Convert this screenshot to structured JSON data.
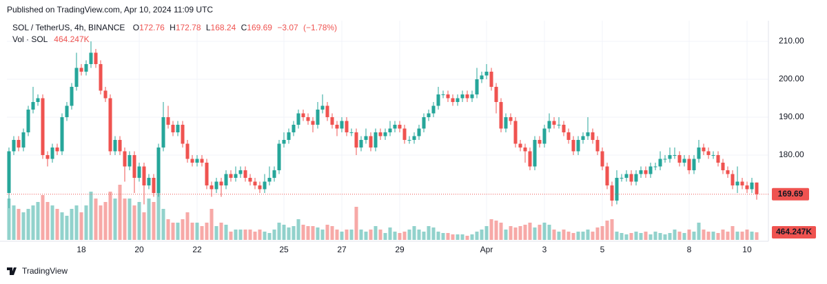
{
  "header": "Published on TradingView.com, Apr 10, 2024 11:09 UTC",
  "footer": "TradingView",
  "chart_data": {
    "type": "candlestick",
    "symbol": "SOL / TetherUS, 4h, BINANCE",
    "ohlc_labels": [
      "O",
      "H",
      "L",
      "C"
    ],
    "change": {
      "value": -3.07,
      "label": "−3.07"
    },
    "change_pct": {
      "value": -1.78,
      "label": "(−1.78%)"
    },
    "volume_label": "Vol · SOL",
    "volume_last_label": "464.247K",
    "up_color": "#26a69a",
    "down_color": "#ef5350",
    "grid": true,
    "ylim": [
      157.27,
      215.45
    ],
    "yticks": [
      {
        "value": 180,
        "label": "180.00"
      },
      {
        "value": 190,
        "label": "190.00"
      },
      {
        "value": 200,
        "label": "200.00"
      },
      {
        "value": 210,
        "label": "210.00"
      }
    ],
    "xlim": [
      -0.43,
      157.43
    ],
    "xticks": [
      {
        "value": 15,
        "label": "18"
      },
      {
        "value": 27,
        "label": "20"
      },
      {
        "value": 39,
        "label": "22"
      },
      {
        "value": 57,
        "label": "25"
      },
      {
        "value": 69,
        "label": "27"
      },
      {
        "value": 81,
        "label": "29"
      },
      {
        "value": 99,
        "label": "Apr"
      },
      {
        "value": 111,
        "label": "3"
      },
      {
        "value": 123,
        "label": "5"
      },
      {
        "value": 141,
        "label": "8"
      },
      {
        "value": 153,
        "label": "10"
      }
    ],
    "open": [
      170,
      181,
      184,
      182,
      186,
      192,
      194,
      195,
      180,
      179,
      182,
      181,
      190,
      193,
      198,
      203,
      202,
      204,
      207,
      204,
      197,
      195,
      181,
      184,
      181,
      177,
      180,
      174,
      177,
      172,
      174,
      170,
      182,
      190,
      188,
      186,
      188,
      183,
      179,
      178,
      179,
      178,
      172,
      171,
      173,
      172,
      175,
      174,
      175,
      176,
      174,
      173,
      172,
      171,
      173,
      174,
      176,
      183,
      184,
      186,
      188,
      191,
      190,
      189,
      188,
      192,
      193,
      190,
      188,
      187,
      189,
      186,
      186,
      182,
      184,
      185,
      182,
      186,
      185,
      186,
      187,
      188,
      187,
      184,
      184,
      185,
      187,
      190,
      191,
      193,
      196,
      196,
      195,
      194,
      195,
      196,
      195,
      196,
      200,
      201,
      202,
      198,
      194,
      187,
      190,
      189,
      183,
      182,
      181,
      177,
      184,
      183,
      187,
      189,
      188,
      188,
      186,
      184,
      181,
      184,
      185,
      186,
      184,
      181,
      177,
      172,
      168,
      174,
      174,
      175,
      173,
      175,
      176,
      175,
      177,
      177,
      179,
      179,
      180,
      180,
      178,
      179,
      176,
      179,
      182,
      181,
      180,
      180,
      178,
      176,
      175,
      172,
      173,
      172,
      171,
      172.76
    ],
    "high": [
      182,
      185,
      185,
      187,
      193,
      198,
      196,
      196,
      181,
      183,
      183,
      191,
      194,
      199,
      207,
      204,
      205,
      210,
      208,
      205,
      198,
      196,
      185,
      185,
      182,
      181,
      181,
      178,
      178,
      175,
      175,
      183,
      194,
      193,
      189,
      189,
      189,
      184,
      180,
      180,
      180,
      179,
      173,
      174,
      174,
      176,
      176,
      177,
      177,
      177,
      175,
      174,
      173,
      175,
      177,
      177,
      184,
      186,
      187,
      189,
      192,
      192,
      191,
      190,
      194,
      196,
      194,
      191,
      189,
      190,
      190,
      187,
      187,
      185,
      187,
      186,
      187,
      187,
      187,
      189,
      189,
      189,
      188,
      185,
      186,
      188,
      191,
      192,
      194,
      198,
      197,
      197,
      196,
      196,
      197,
      197,
      197,
      203,
      202,
      204,
      203,
      199,
      195,
      191,
      191,
      190,
      184,
      183,
      182,
      185,
      185,
      188,
      191,
      190,
      190,
      189,
      187,
      185,
      185,
      186,
      190,
      187,
      185,
      182,
      178,
      173,
      176,
      175,
      176,
      176,
      176,
      177,
      177,
      178,
      178,
      181,
      180,
      182,
      182,
      181,
      180,
      180,
      180,
      184,
      183,
      182,
      181,
      181,
      179,
      177,
      176,
      177,
      174,
      173,
      174,
      172.78
    ],
    "low": [
      166,
      180,
      181,
      181,
      185,
      191,
      193,
      179,
      177,
      178,
      180,
      180,
      189,
      192,
      197,
      201,
      201,
      203,
      203,
      196,
      194,
      180,
      180,
      180,
      173,
      176,
      170,
      173,
      167,
      171,
      169,
      169,
      181,
      187,
      185,
      185,
      182,
      178,
      177,
      177,
      177,
      171,
      169,
      170,
      169,
      171,
      173,
      173,
      174,
      173,
      172,
      171,
      170,
      170,
      172,
      173,
      175,
      182,
      183,
      185,
      187,
      189,
      188,
      186,
      187,
      191,
      189,
      187,
      185,
      186,
      185,
      185,
      180,
      181,
      183,
      181,
      181,
      184,
      184,
      185,
      186,
      186,
      183,
      183,
      183,
      184,
      186,
      189,
      190,
      192,
      195,
      194,
      193,
      193,
      194,
      194,
      194,
      195,
      199,
      200,
      197,
      191,
      186,
      186,
      188,
      182,
      181,
      178,
      176,
      176,
      182,
      182,
      186,
      187,
      187,
      185,
      183,
      180,
      180,
      183,
      184,
      183,
      180,
      176,
      171,
      166.5,
      167,
      173,
      173,
      172,
      172,
      174,
      174,
      174,
      176,
      176,
      178,
      178,
      179,
      177,
      177,
      175,
      175,
      178,
      180,
      179,
      179,
      177,
      175,
      174,
      171,
      170,
      171,
      170,
      170,
      168.24
    ],
    "close": [
      181,
      184,
      182,
      186,
      192,
      194,
      195,
      180,
      179,
      182,
      181,
      190,
      193,
      198,
      203,
      202,
      204,
      207,
      204,
      197,
      195,
      181,
      184,
      181,
      177,
      180,
      174,
      177,
      172,
      174,
      170,
      182,
      190,
      188,
      186,
      188,
      183,
      179,
      178,
      179,
      178,
      172,
      171,
      173,
      172,
      175,
      174,
      175,
      176,
      174,
      173,
      172,
      171,
      173,
      174,
      176,
      183,
      184,
      186,
      188,
      191,
      190,
      189,
      188,
      192,
      193,
      190,
      188,
      187,
      189,
      186,
      186,
      182,
      184,
      185,
      182,
      186,
      185,
      186,
      187,
      188,
      187,
      184,
      184,
      185,
      187,
      190,
      191,
      193,
      196,
      196,
      195,
      194,
      195,
      196,
      195,
      196,
      200,
      201,
      202,
      198,
      194,
      187,
      190,
      189,
      183,
      182,
      181,
      177,
      184,
      183,
      187,
      189,
      188,
      188,
      186,
      184,
      181,
      184,
      185,
      186,
      184,
      181,
      177,
      172,
      168,
      174,
      174,
      175,
      173,
      175,
      176,
      175,
      177,
      177,
      179,
      179,
      180,
      180,
      178,
      179,
      176,
      179,
      182,
      181,
      180,
      180,
      178,
      176,
      175,
      172,
      173,
      172,
      171,
      172.76,
      169.69
    ],
    "volume": [
      2520,
      2100,
      1890,
      1680,
      1890,
      2100,
      2310,
      2730,
      2310,
      2100,
      1890,
      1680,
      1470,
      1890,
      2100,
      1680,
      2100,
      2940,
      2520,
      2100,
      2310,
      2940,
      2520,
      3360,
      2520,
      2520,
      2100,
      2310,
      1680,
      2520,
      2310,
      2940,
      1890,
      1260,
      1050,
      1050,
      1260,
      1680,
      1050,
      1050,
      840,
      1050,
      1890,
      840,
      1050,
      924,
      504,
      630,
      630,
      630,
      630,
      504,
      630,
      504,
      420,
      630,
      1050,
      924,
      756,
      840,
      1260,
      924,
      840,
      840,
      756,
      630,
      924,
      840,
      630,
      504,
      630,
      630,
      2016,
      630,
      504,
      630,
      840,
      630,
      420,
      756,
      504,
      420,
      504,
      630,
      840,
      630,
      504,
      840,
      756,
      504,
      420,
      420,
      336,
      336,
      336,
      252,
      336,
      504,
      630,
      840,
      1260,
      1176,
      1050,
      630,
      840,
      756,
      840,
      924,
      1050,
      756,
      924,
      1050,
      924,
      630,
      504,
      630,
      504,
      420,
      504,
      504,
      630,
      504,
      756,
      840,
      1176,
      1260,
      504,
      420,
      336,
      420,
      504,
      420,
      504,
      336,
      504,
      420,
      336,
      420,
      630,
      504,
      420,
      630,
      504,
      1050,
      630,
      504,
      504,
      420,
      630,
      504,
      840,
      504,
      504,
      630,
      504,
      464.247
    ]
  }
}
